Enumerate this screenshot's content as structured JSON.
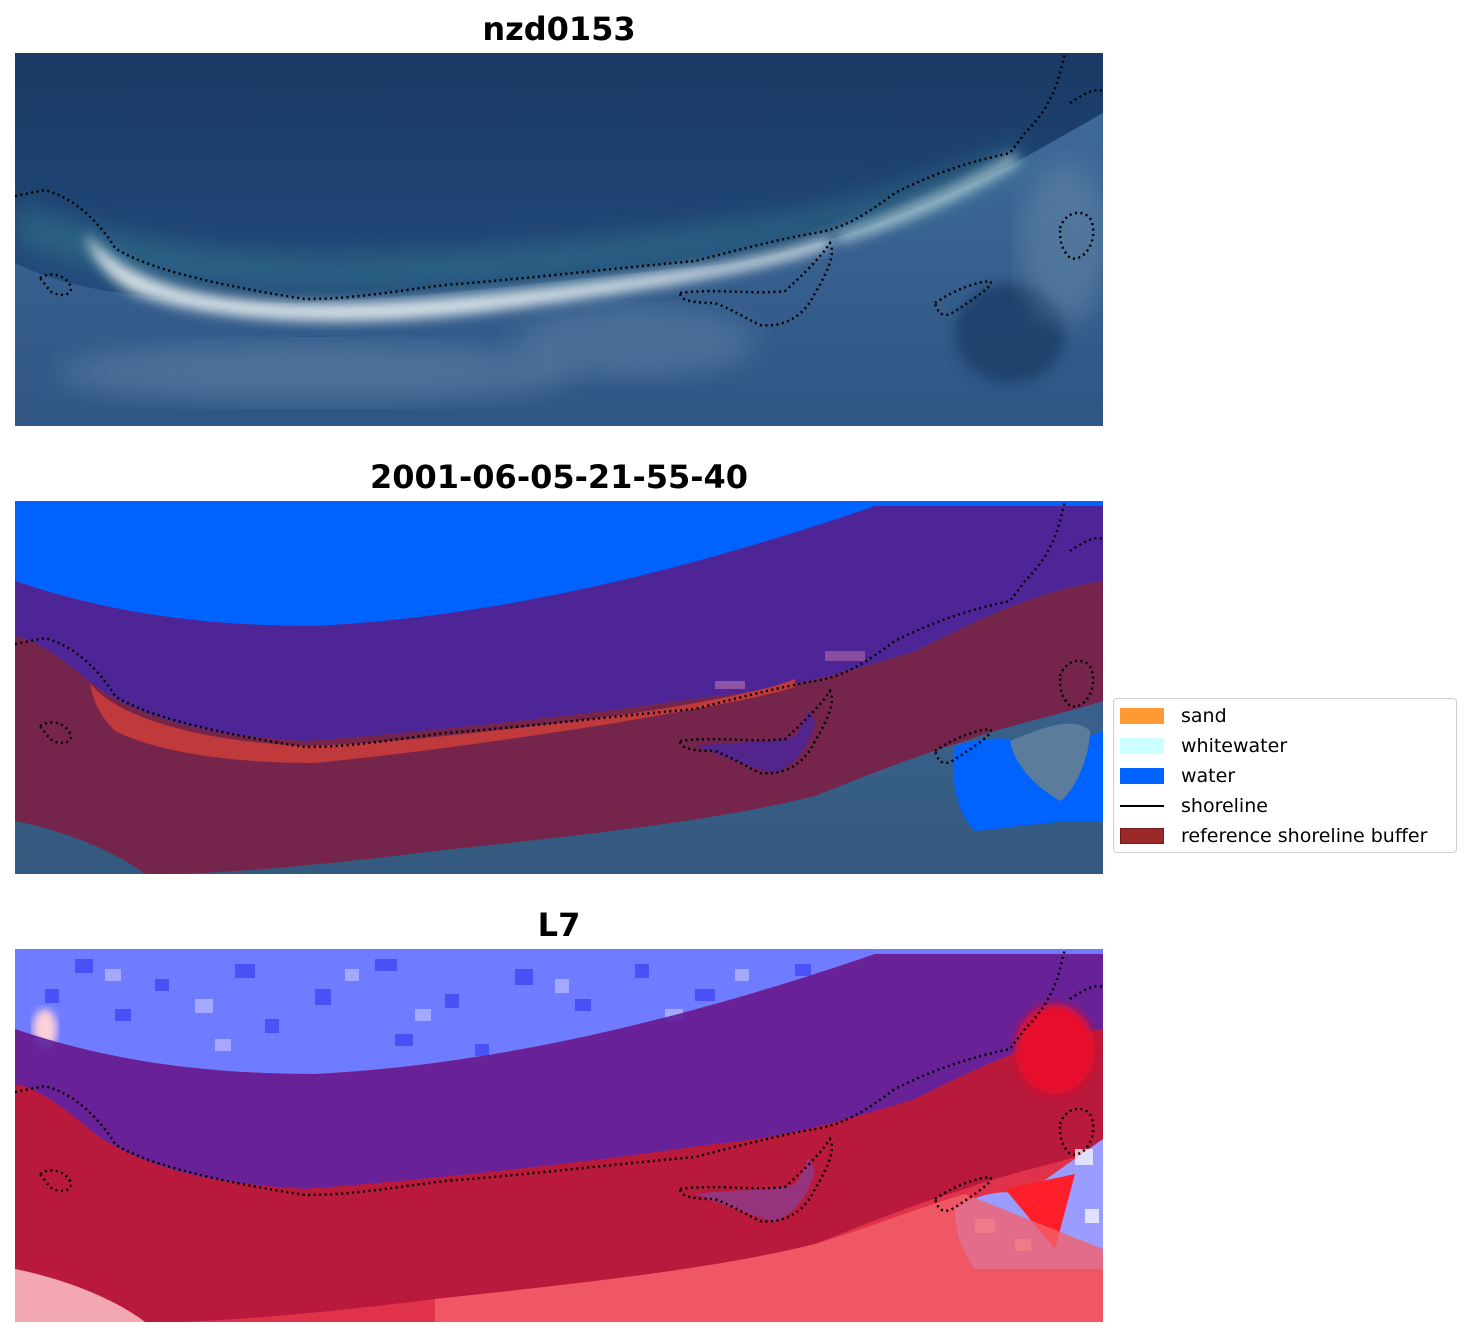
{
  "panels": [
    {
      "title": "nzd0153",
      "kind": "rgb-image"
    },
    {
      "title": "2001-06-05-21-55-40",
      "kind": "classified-image"
    },
    {
      "title": "L7",
      "kind": "index-image"
    }
  ],
  "legend": {
    "placement": "center-right",
    "items": [
      {
        "label": "sand",
        "color": "#ff9933",
        "type": "patch"
      },
      {
        "label": "whitewater",
        "color": "#ccffff",
        "type": "patch"
      },
      {
        "label": "water",
        "color": "#0062ff",
        "type": "patch"
      },
      {
        "label": "shoreline",
        "color": "#000000",
        "type": "line"
      },
      {
        "label": "reference shoreline buffer",
        "color": "#9a2a2a",
        "type": "patch"
      }
    ]
  },
  "colors": {
    "ocean_dark": "#1e4070",
    "surf_white": "#e8f0f0",
    "water_class": "#0062ff",
    "buffer_overlay": "#8b1e3f",
    "purple_mix": "#4e2597",
    "index_blue": "#6f7cff",
    "index_red": "#d81e3c"
  }
}
